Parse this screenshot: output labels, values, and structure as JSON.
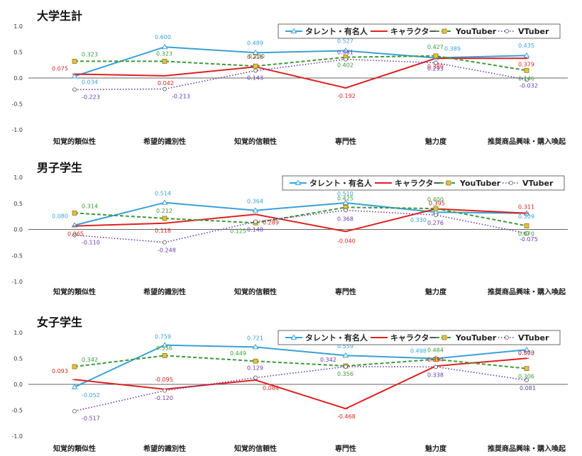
{
  "colors": {
    "talent": "#3aa0d8",
    "character": "#e02020",
    "youtuber": "#3a9a3a",
    "vtuber": "#6a3aa8",
    "axis": "#333333",
    "tick": "#333333"
  },
  "chart_data": [
    {
      "type": "line",
      "title": "大学生計",
      "categories": [
        "知覚的類似性",
        "希望的識別性",
        "知覚的信頼性",
        "専門性",
        "魅力度",
        "推奨商品興味・購入喚起"
      ],
      "ylim": [
        -1.0,
        1.0
      ],
      "yticks": [
        "1.0",
        "0.5",
        "0.0",
        "-0.5",
        "-1.0"
      ],
      "legend": "top-right",
      "series": [
        {
          "name": "タレント・有名人",
          "values": [
            0.034,
            0.6,
            0.489,
            0.527,
            0.389,
            0.435
          ],
          "labels": [
            "0.034",
            "0.600",
            "0.489",
            "0.527",
            "0.389",
            "0.435"
          ]
        },
        {
          "name": "キャラクター",
          "values": [
            0.075,
            0.042,
            0.216,
            -0.192,
            0.38,
            0.379
          ],
          "labels": [
            "0.075",
            "0.042",
            "0.216",
            "-0.192",
            "0.380",
            "0.379"
          ]
        },
        {
          "name": "YouTuber",
          "values": [
            0.323,
            0.323,
            0.23,
            0.402,
            0.427,
            0.146
          ],
          "labels": [
            "0.323",
            "0.323",
            "0.230",
            "0.402",
            "0.427",
            "0.146"
          ]
        },
        {
          "name": "VTuber",
          "values": [
            -0.223,
            -0.213,
            0.143,
            0.361,
            0.293,
            -0.032
          ],
          "labels": [
            "-0.223",
            "-0.213",
            "0.143",
            "0.361",
            "0.293",
            "-0.032"
          ]
        }
      ]
    },
    {
      "type": "line",
      "title": "男子学生",
      "categories": [
        "知覚的類似性",
        "希望的識別性",
        "知覚的信頼性",
        "専門性",
        "魅力度",
        "推奨商品興味・購入喚起"
      ],
      "ylim": [
        -1.0,
        1.0
      ],
      "yticks": [
        "1.0",
        "0.5",
        "0.0",
        "-0.5",
        "-1.0"
      ],
      "legend": "top-right",
      "series": [
        {
          "name": "タレント・有名人",
          "values": [
            0.08,
            0.514,
            0.364,
            0.51,
            0.33,
            0.309
          ],
          "labels": [
            "0.080",
            "0.514",
            "0.364",
            "0.510",
            "0.330",
            "0.309"
          ]
        },
        {
          "name": "キャラクター",
          "values": [
            0.065,
            0.118,
            0.289,
            -0.04,
            0.395,
            0.311
          ],
          "labels": [
            "0.065",
            "0.118",
            "0.289",
            "-0.040",
            "0.395",
            "0.311"
          ]
        },
        {
          "name": "YouTuber",
          "values": [
            0.314,
            0.212,
            0.125,
            0.425,
            0.4,
            0.07
          ],
          "labels": [
            "0.314",
            "0.212",
            "0.125",
            "0.425",
            "0.400",
            "0.070"
          ]
        },
        {
          "name": "VTuber",
          "values": [
            -0.11,
            -0.248,
            0.148,
            0.368,
            0.276,
            -0.075
          ],
          "labels": [
            "-0.110",
            "-0.248",
            "0.148",
            "0.368",
            "0.276",
            "-0.075"
          ]
        }
      ]
    },
    {
      "type": "line",
      "title": "女子学生",
      "categories": [
        "知覚的類似性",
        "希望的識別性",
        "知覚的信頼性",
        "専門性",
        "魅力度",
        "推奨商品興味・購入喚起"
      ],
      "ylim": [
        -1.0,
        1.0
      ],
      "yticks": [
        "1.0",
        "0.5",
        "0.0",
        "-0.5",
        "-1.0"
      ],
      "legend": "top-right",
      "series": [
        {
          "name": "タレント・有名人",
          "values": [
            -0.052,
            0.759,
            0.721,
            0.559,
            0.498,
            0.67
          ],
          "labels": [
            "-0.052",
            "0.759",
            "0.721",
            "0.559",
            "0.498",
            "0.670"
          ]
        },
        {
          "name": "キャラクター",
          "values": [
            0.093,
            -0.095,
            0.084,
            -0.468,
            0.354,
            0.503
          ],
          "labels": [
            "0.093",
            "-0.095",
            "0.084",
            "-0.468",
            "0.354",
            "0.503"
          ]
        },
        {
          "name": "YouTuber",
          "values": [
            0.342,
            0.556,
            0.449,
            0.356,
            0.484,
            0.306
          ],
          "labels": [
            "0.342",
            "0.556",
            "0.449",
            "0.356",
            "0.484",
            "0.306"
          ]
        },
        {
          "name": "VTuber",
          "values": [
            -0.517,
            -0.12,
            0.129,
            0.342,
            0.338,
            0.081
          ],
          "labels": [
            "-0.517",
            "-0.120",
            "0.129",
            "0.342",
            "0.338",
            "0.081"
          ]
        }
      ]
    }
  ]
}
